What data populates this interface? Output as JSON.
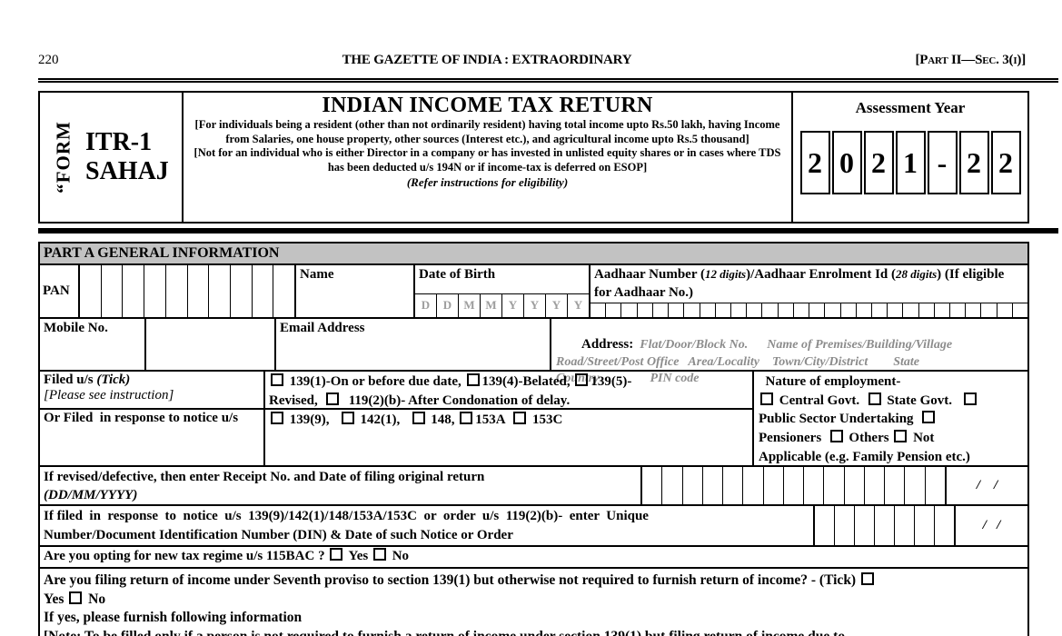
{
  "gazette": {
    "page_number": "220",
    "title": "THE GAZETTE OF INDIA : EXTRAORDINARY",
    "part_ref": "[Part II—Sec. 3(i)]"
  },
  "form_header": {
    "form_word": "“FORM",
    "form_code": "ITR-1\nSAHAJ",
    "title": "INDIAN INCOME TAX RETURN",
    "eligibility": "[For individuals being a resident (other than not ordinarily resident) having total income upto Rs.50 lakh, having Income from Salaries, one house property, other sources (Interest etc.), and agricultural income upto Rs.5 thousand]",
    "exclusion": "[Not for an individual who is either Director in a company or has invested in unlisted equity shares or in cases where TDS has been deducted u/s 194N or if income-tax is deferred on ESOP]",
    "refer_note": "(Refer instructions for eligibility)",
    "assessment_year": {
      "label": "Assessment Year",
      "digits": [
        "2",
        "0",
        "2",
        "1",
        "-",
        "2",
        "2"
      ]
    }
  },
  "part_a": {
    "section_title": "PART A GENERAL INFORMATION",
    "pan": {
      "label": "PAN",
      "box_count": 10
    },
    "name": {
      "label": "Name"
    },
    "dob": {
      "label": "Date of Birth",
      "cells": [
        "D",
        "D",
        "M",
        "M",
        "Y",
        "Y",
        "Y",
        "Y"
      ]
    },
    "aadhaar": {
      "label_parts": [
        "Aadhaar Number (",
        "12 digits",
        ")/Aadhaar Enrolment Id (",
        "28 digits",
        ") (If eligible for Aadhaar No.)"
      ],
      "box_count": 28
    },
    "mobile": {
      "label": "Mobile No."
    },
    "email": {
      "label": "Email Address"
    },
    "address": {
      "label": "Address:",
      "hints": "  Flat/Door/Block No.      Name of Premises/Building/Village\nRoad/Street/Post Office   Area/Locality    Town/City/District        State\nCountry                PIN code"
    },
    "filed": {
      "label": "Filed u/s ",
      "label_tick": "(Tick)",
      "note": "[Please see instruction]",
      "options": "☐ 139(1)-On or before due date, ☐139(4)-Belated, ☐139(5)-\nRevised,  ☐  119(2)(b)- After Condonation of delay."
    },
    "notice": {
      "label": "Or Filed  in response to notice u/s",
      "options": "☐ 139(9),   ☐ 142(1),   ☐ 148, ☐153A  ☐ 153C"
    },
    "employment": {
      "text": "  Nature of employment-\n☐ Central Govt.  ☐ State Govt.   ☐\nPublic Sector Undertaking  ☐\nPensioners  ☐ Others ☐ Not\nApplicable (e.g. Family Pension etc.)"
    },
    "revised": {
      "label": "If revised/defective, then enter Receipt No. and Date of filing original return",
      "label_format": "(DD/MM/YYYY)",
      "box_count": 15,
      "date_placeholder": "/    /"
    },
    "din": {
      "label": "If filed  in  response  to  notice  u/s  139(9)/142(1)/148/153A/153C  or  order  u/s  119(2)(b)-  enter  Unique\nNumber/Document Identification Number (DIN) & Date of such Notice or Order",
      "box_count": 7,
      "date_placeholder": "/   /"
    },
    "new_regime": {
      "text": "Are you opting for new tax regime u/s 115BAC ? ☐ Yes ☐ No"
    },
    "seventh_proviso": {
      "question": "Are you filing return of income under Seventh proviso to section 139(1) but otherwise not required to furnish return of income? - (Tick) ☐\nYes ☐ No",
      "if_yes": "If yes, please furnish following information",
      "note": "[Note: To be filled only if a person is not required to furnish a return of income under section 139(1) but filing return of income due to"
    }
  }
}
